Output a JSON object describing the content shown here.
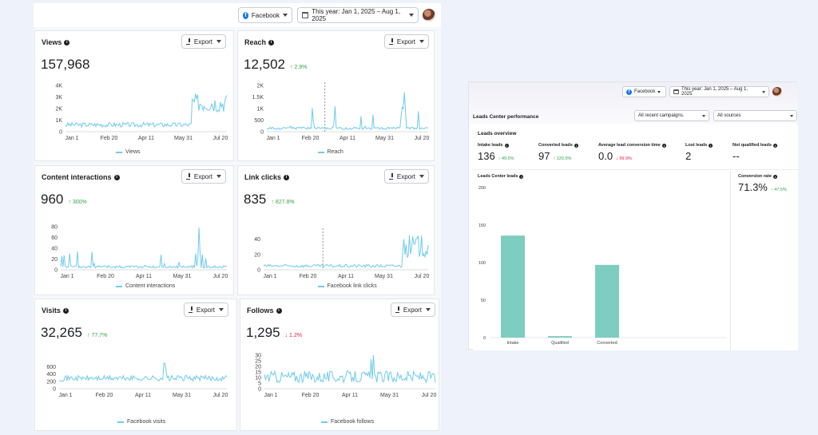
{
  "left": {
    "filters": {
      "platform": "Facebook",
      "date_range": "This year: Jan 1, 2025 – Aug 1, 2025"
    },
    "export_label": "Export",
    "cards": [
      {
        "title": "Views",
        "value": "157,968",
        "delta": "",
        "legend": "Views"
      },
      {
        "title": "Reach",
        "value": "12,502",
        "delta": "↑ 2.9%",
        "legend": "Reach"
      },
      {
        "title": "Content interactions",
        "value": "960",
        "delta": "↑ 300%",
        "legend": "Content interactions"
      },
      {
        "title": "Link clicks",
        "value": "835",
        "delta": "↑ 827.8%",
        "legend": "Facebook link clicks"
      },
      {
        "title": "Visits",
        "value": "32,265",
        "delta": "↑ 77.7%",
        "legend": "Facebook visits"
      },
      {
        "title": "Follows",
        "value": "1,295",
        "delta": "↓ 1.2%",
        "legend": "Facebook follows"
      }
    ]
  },
  "right": {
    "filters": {
      "platform": "Facebook",
      "date_range": "This year: Jan 1, 2025 – Aug 1, 2025"
    },
    "title": "Leads Center performance",
    "campaign_select": "All recent campaigns.",
    "source_select": "All sources",
    "overview_title": "Leads overview",
    "metrics": [
      {
        "label": "Intake leads",
        "value": "136",
        "delta": "↑ 49.5%"
      },
      {
        "label": "Converted leads",
        "value": "97",
        "delta": "↑ 120.5%"
      },
      {
        "label": "Average lead conversion time",
        "value": "0.0",
        "delta": "↓ 99.9%"
      },
      {
        "label": "Lost leads",
        "value": "2",
        "delta": ""
      },
      {
        "label": "Not qualified leads",
        "value": "--",
        "delta": ""
      }
    ],
    "chart_title": "Leads Center leads",
    "conversion": {
      "label": "Conversion rate",
      "value": "71.3%",
      "delta": "↑ 47.5%"
    }
  },
  "chart_data": [
    {
      "type": "line",
      "title": "Views",
      "x": [
        "Jan 1",
        "Feb 20",
        "Apr 11",
        "May 31",
        "Jul 20"
      ],
      "yticks": [
        "0",
        "1K",
        "2K",
        "3K",
        "4K"
      ],
      "ylim": [
        0,
        4000
      ],
      "legend": "Views"
    },
    {
      "type": "line",
      "title": "Reach",
      "x": [
        "Jan 1",
        "Feb 20",
        "Apr 11",
        "May 31",
        "Jul 20"
      ],
      "yticks": [
        "0",
        "500",
        "1K",
        "1.5K",
        "2K"
      ],
      "ylim": [
        0,
        2000
      ],
      "legend": "Reach"
    },
    {
      "type": "line",
      "title": "Content interactions",
      "x": [
        "Jan 1",
        "Feb 20",
        "Apr 11",
        "May 31",
        "Jul 20"
      ],
      "yticks": [
        "0",
        "20",
        "40",
        "60",
        "80"
      ],
      "ylim": [
        0,
        80
      ],
      "legend": "Content interactions"
    },
    {
      "type": "line",
      "title": "Link clicks",
      "x": [
        "Jan 1",
        "Feb 20",
        "Apr 11",
        "May 31",
        "Jul 20"
      ],
      "yticks": [
        "0",
        "20",
        "40"
      ],
      "ylim": [
        0,
        50
      ],
      "legend": "Facebook link clicks"
    },
    {
      "type": "line",
      "title": "Visits",
      "x": [
        "Jan 1",
        "Feb 20",
        "Apr 11",
        "May 31",
        "Jul 20"
      ],
      "yticks": [
        "0",
        "200",
        "400",
        "600"
      ],
      "ylim": [
        0,
        700
      ],
      "legend": "Facebook visits"
    },
    {
      "type": "line",
      "title": "Follows",
      "x": [
        "Jan 1",
        "Feb 20",
        "Apr 11",
        "May 31",
        "Jul 20"
      ],
      "yticks": [
        "0",
        "5",
        "10",
        "15",
        "20",
        "25",
        "30"
      ],
      "ylim": [
        0,
        30
      ],
      "legend": "Facebook follows"
    },
    {
      "type": "bar",
      "title": "Leads Center leads",
      "categories": [
        "Intake",
        "Qualified",
        "Converted"
      ],
      "values": [
        136,
        2,
        97
      ],
      "yticks": [
        "0",
        "50",
        "100",
        "150",
        "200"
      ],
      "ylim": [
        0,
        200
      ]
    }
  ]
}
